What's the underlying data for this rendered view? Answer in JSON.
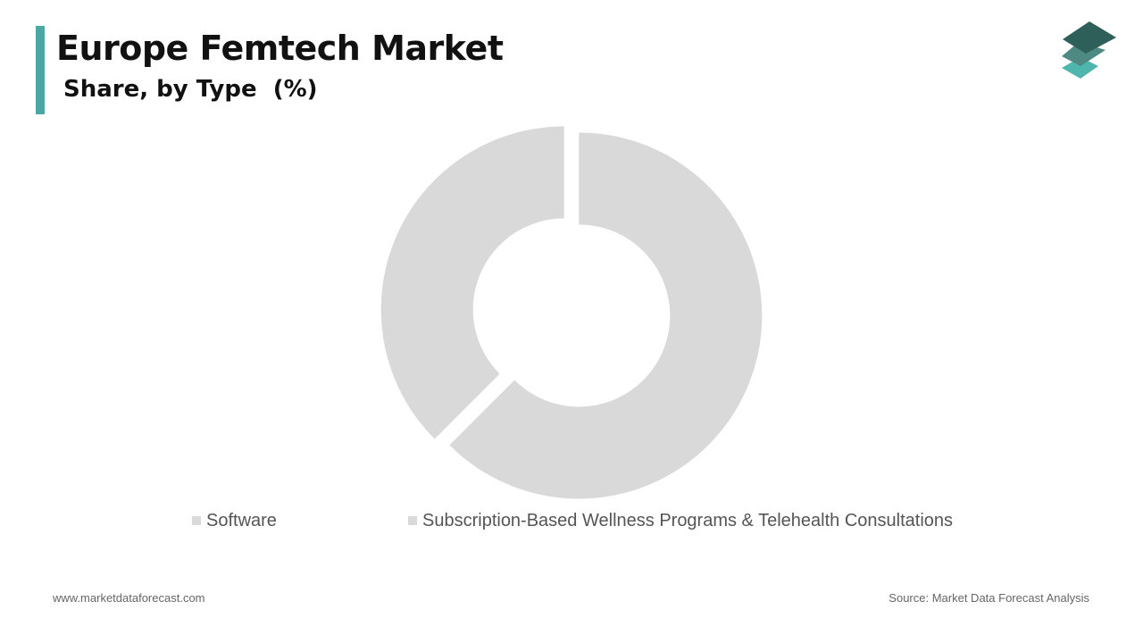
{
  "header": {
    "title": "Europe Femtech Market",
    "subtitle": "Share, by Type  (%)"
  },
  "colors": {
    "accent": "#4aa7a4",
    "slice": "#d9d9d9",
    "logo_top": "#2f5f59",
    "logo_middle": "#4e8a82",
    "logo_bottom": "#4fb6ae"
  },
  "icons": {
    "logo": "stacked-layers-icon"
  },
  "chart_data": {
    "type": "pie",
    "variant": "donut",
    "categories": [
      "Software",
      "Subscription-Based Wellness Programs & Telehealth Consultations"
    ],
    "values": [
      37.5,
      62.5
    ],
    "unit": "%",
    "data_labels": false,
    "legend": "bottom",
    "slice_colors": [
      "#d9d9d9",
      "#d9d9d9"
    ]
  },
  "legend": {
    "items": [
      {
        "label": "Software"
      },
      {
        "label": "Subscription-Based Wellness Programs & Telehealth Consultations"
      }
    ]
  },
  "footer": {
    "website": "www.marketdataforecast.com",
    "source": "Source: Market Data Forecast Analysis"
  }
}
